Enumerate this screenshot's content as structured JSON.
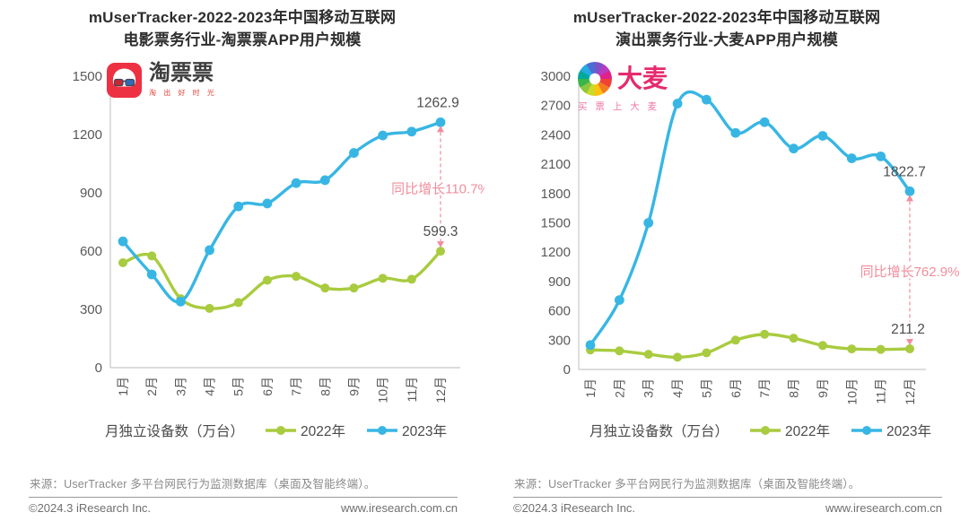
{
  "chart_data": [
    {
      "type": "line",
      "title1": "mUserTracker-2022-2023年中国移动互联网",
      "title2": "电影票务行业-淘票票APP用户规模",
      "logo_name": "淘票票",
      "logo_tagline": "淘 出 好 时 光",
      "categories": [
        "1月",
        "2月",
        "3月",
        "4月",
        "5月",
        "6月",
        "7月",
        "8月",
        "9月",
        "10月",
        "11月",
        "12月"
      ],
      "series": [
        {
          "name": "2022年",
          "color": "#a9cb3f",
          "values": [
            540,
            575,
            355,
            305,
            335,
            450,
            470,
            410,
            410,
            460,
            455,
            599.3
          ]
        },
        {
          "name": "2023年",
          "color": "#38b6e3",
          "values": [
            650,
            480,
            340,
            605,
            830,
            845,
            950,
            965,
            1105,
            1195,
            1215,
            1262.9
          ]
        }
      ],
      "ylabel": "月独立设备数（万台）",
      "ylim": [
        0,
        1500
      ],
      "ytick_step": 300,
      "grid": "off",
      "end_label_2023": "1262.9",
      "end_label_2022": "599.3",
      "annotation_text": "同比增长110.7%",
      "annotation_color": "#f28d9d"
    },
    {
      "type": "line",
      "title1": "mUserTracker-2022-2023年中国移动互联网",
      "title2": "演出票务行业-大麦APP用户规模",
      "logo_name": "大麦",
      "logo_tagline": "买 票 上 大 麦",
      "categories": [
        "1月",
        "2月",
        "3月",
        "4月",
        "5月",
        "6月",
        "7月",
        "8月",
        "9月",
        "10月",
        "11月",
        "12月"
      ],
      "series": [
        {
          "name": "2022年",
          "color": "#a9cb3f",
          "values": [
            200,
            190,
            155,
            125,
            170,
            300,
            360,
            320,
            245,
            210,
            205,
            211.2
          ]
        },
        {
          "name": "2023年",
          "color": "#38b6e3",
          "values": [
            250,
            710,
            1500,
            2720,
            2760,
            2420,
            2530,
            2260,
            2390,
            2160,
            2180,
            1822.7
          ]
        }
      ],
      "ylabel": "月独立设备数（万台）",
      "ylim": [
        0,
        3000
      ],
      "ytick_step": 300,
      "grid": "off",
      "end_label_2023": "1822.7",
      "end_label_2022": "211.2",
      "annotation_text": "同比增长762.9%",
      "annotation_color": "#f28d9d"
    }
  ],
  "legend": {
    "axis_note": "月独立设备数（万台）",
    "items": [
      {
        "label": "2022年",
        "color": "#a9cb3f"
      },
      {
        "label": "2023年",
        "color": "#38b6e3"
      }
    ]
  },
  "source": "来源：UserTracker 多平台网民行为监测数据库（桌面及智能终端）。",
  "footer": {
    "left": "©2024.3 iResearch Inc.",
    "right": "www.iresearch.com.cn"
  }
}
